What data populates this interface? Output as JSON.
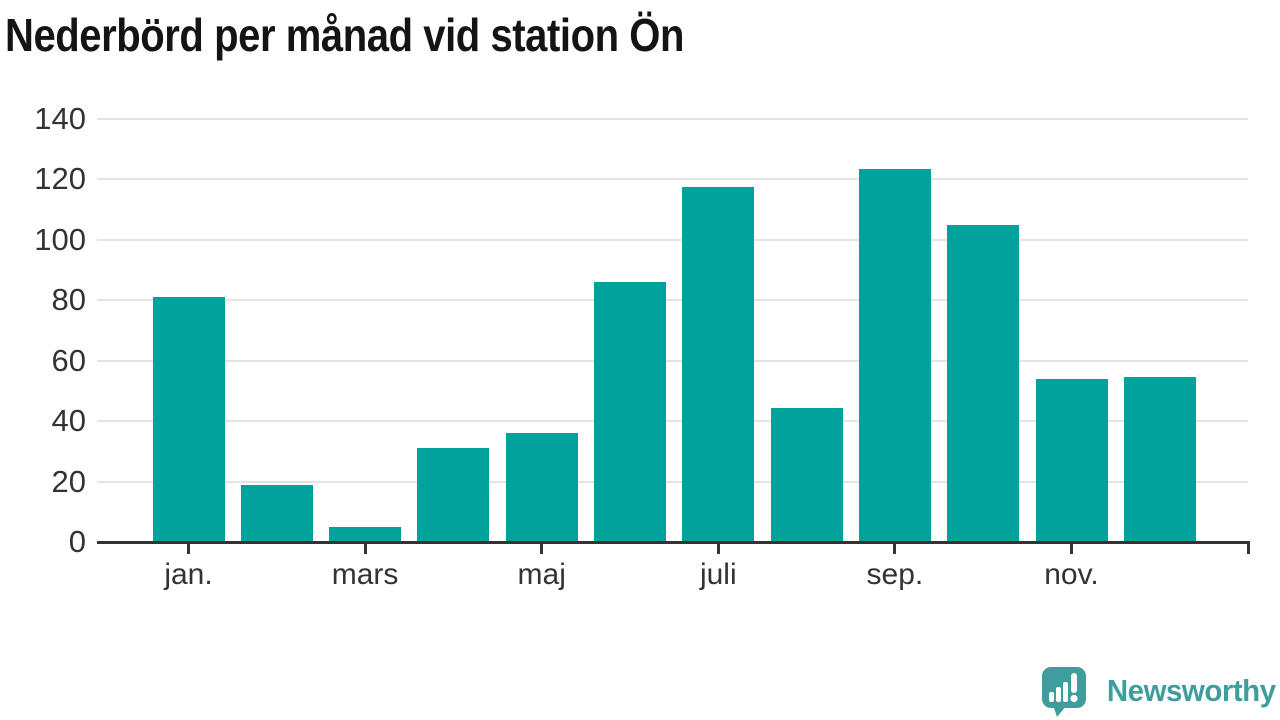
{
  "title": "Nederbörd per månad vid station Ön",
  "branding": {
    "logo_text": "Newsworthy",
    "logo_icon": "bar-chart-speech-bubble-icon"
  },
  "colors": {
    "bar": "#00a29b",
    "gridline": "#e4e4e4",
    "axis": "#333333",
    "title_text": "#141414",
    "brand": "#3f9e9d",
    "background": "#ffffff"
  },
  "chart_data": {
    "type": "bar",
    "title": "Nederbörd per månad vid station Ön",
    "xlabel": "",
    "ylabel": "",
    "num_bars": 12,
    "values": [
      81,
      19,
      5,
      31,
      36,
      86,
      117.5,
      44.5,
      123.5,
      105,
      54,
      54.5
    ],
    "x_tick_labels": [
      "jan.",
      "mars",
      "maj",
      "juli",
      "sep.",
      "nov."
    ],
    "label_bar_indices": [
      0,
      2,
      4,
      6,
      8,
      10
    ],
    "y_ticks": [
      0,
      20,
      40,
      60,
      80,
      100,
      120,
      140
    ],
    "ylim": [
      0,
      140
    ],
    "grid": "horizontal",
    "legend": "none",
    "bar_color": "#00a29b"
  }
}
